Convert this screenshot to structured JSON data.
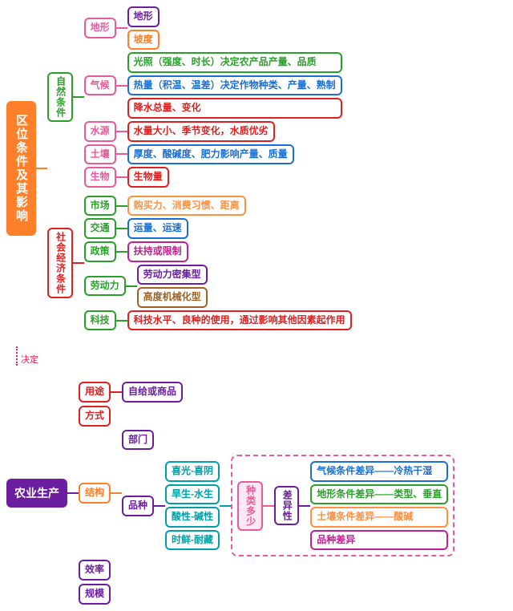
{
  "colors": {
    "orange": "#ff7f2a",
    "pink": "#e85a9c",
    "green": "#2aa02a",
    "red": "#e02020",
    "blue": "#1a6fd4",
    "teal": "#00a0a8",
    "purple": "#6b1fa0",
    "magenta": "#c02090",
    "olive": "#808000",
    "brown": "#a06020",
    "ltorange": "#ff9040"
  },
  "root1": "区位条件及其影响",
  "natural": {
    "label": "自然条件",
    "terrain": {
      "label": "地形",
      "items": [
        "地形",
        "坡度"
      ]
    },
    "climate": {
      "label": "气候",
      "items": [
        "光照（强度、时长）决定农产品产量、品质",
        "热量（积温、温差）决定作物种类、产量、熟制",
        "降水总量、变化"
      ]
    },
    "water": {
      "label": "水源",
      "item": "水量大小、季节变化，水质优劣"
    },
    "soil": {
      "label": "土壤",
      "item": "厚度、酸碱度、肥力影响产量、质量"
    },
    "bio": {
      "label": "生物",
      "item": "生物量"
    }
  },
  "social": {
    "label": "社会经济条件",
    "market": {
      "label": "市场",
      "item": "购买力、消费习惯、距离"
    },
    "traffic": {
      "label": "交通",
      "item": "运量、运速"
    },
    "policy": {
      "label": "政策",
      "item": "扶持或限制"
    },
    "labor": {
      "label": "劳动力",
      "items": [
        "劳动力密集型",
        "高度机械化型"
      ]
    },
    "tech": {
      "label": "科技",
      "item": "科技水平、良种的使用，通过影响其他因素起作用"
    }
  },
  "determines": "决定",
  "root2": "农业生产",
  "agri": {
    "use": {
      "label": "用途",
      "item": "自给或商品"
    },
    "mode": {
      "label": "方式"
    },
    "struct": {
      "label": "结构",
      "dept": "部门",
      "variety": {
        "label": "品种",
        "pairs": [
          "喜光-喜阴",
          "旱生-水生",
          "酸性-碱性",
          "时鲜-耐藏"
        ]
      }
    },
    "eff": "效率",
    "scale": "规模",
    "types": {
      "label": "种类多少",
      "diff": "差异性",
      "items": [
        "气候条件差异——冷热干湿",
        "地形条件差异——类型、垂直",
        "土壤条件差异——酸碱",
        "品种差异"
      ]
    }
  }
}
